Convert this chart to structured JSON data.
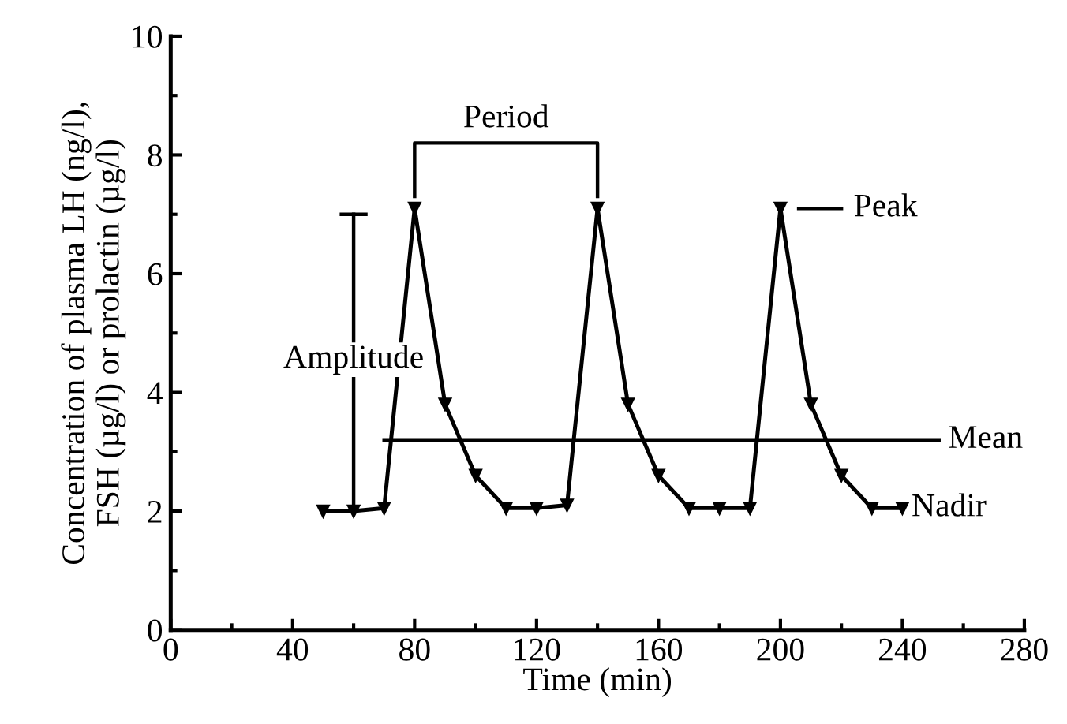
{
  "chart_data": {
    "type": "line",
    "xlabel": "Time (min)",
    "ylabel": "Concentration of plasma LH (ng/l),\nFSH (µg/l) or prolactin (µg/l)",
    "x": [
      50,
      60,
      70,
      80,
      90,
      100,
      110,
      120,
      130,
      140,
      150,
      160,
      170,
      180,
      190,
      200,
      210,
      220,
      230,
      240
    ],
    "values": [
      2.0,
      2.0,
      2.05,
      7.1,
      3.8,
      2.6,
      2.05,
      2.05,
      2.1,
      7.1,
      3.8,
      2.6,
      2.05,
      2.05,
      2.05,
      7.1,
      3.8,
      2.6,
      2.05,
      2.05
    ],
    "color": "#000000",
    "marker": "triangle",
    "line_style": "solid",
    "xlim": [
      0,
      280
    ],
    "xticks": [
      0,
      40,
      80,
      120,
      160,
      200,
      240,
      280
    ],
    "ylim": [
      0,
      10
    ],
    "yticks": [
      0,
      2,
      4,
      6,
      8,
      10
    ],
    "ref_lines": [
      {
        "axis": "y",
        "value": 3.2,
        "label": "Mean"
      }
    ],
    "annotations": [
      "Period",
      "Amplitude",
      "Peak",
      "Nadir"
    ],
    "grid": false
  }
}
